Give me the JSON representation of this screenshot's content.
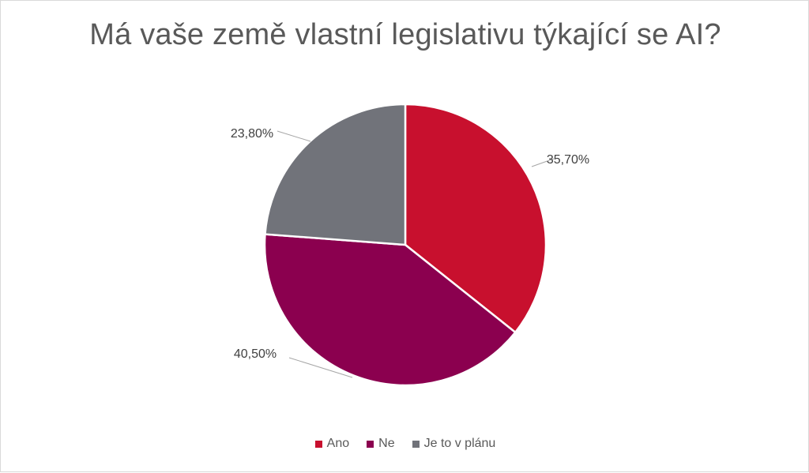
{
  "chart_data": {
    "type": "pie",
    "title": "Má vaše země vlastní legislativu týkající se AI?",
    "categories": [
      "Ano",
      "Ne",
      "Je to v plánu"
    ],
    "values": [
      35.7,
      40.5,
      23.8
    ],
    "labels": [
      "35,70%",
      "40,50%",
      "23,80%"
    ],
    "colors": [
      "#c8102e",
      "#8b004f",
      "#71737a"
    ],
    "legend_position": "bottom"
  }
}
